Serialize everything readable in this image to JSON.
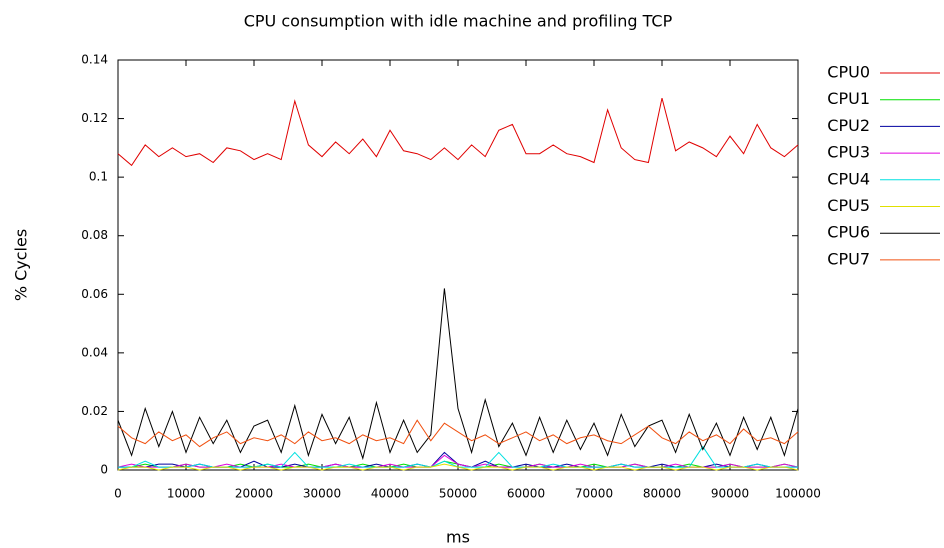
{
  "chart_data": {
    "type": "line",
    "title": "CPU consumption with idle machine and profiling TCP",
    "x_label": "ms",
    "y_label": "% Cycles",
    "x": [
      0,
      2000,
      4000,
      6000,
      8000,
      10000,
      12000,
      14000,
      16000,
      18000,
      20000,
      22000,
      24000,
      26000,
      28000,
      30000,
      32000,
      34000,
      36000,
      38000,
      40000,
      42000,
      44000,
      46000,
      48000,
      50000,
      52000,
      54000,
      56000,
      58000,
      60000,
      62000,
      64000,
      66000,
      68000,
      70000,
      72000,
      74000,
      76000,
      78000,
      80000,
      82000,
      84000,
      86000,
      88000,
      90000,
      92000,
      94000,
      96000,
      98000,
      100000
    ],
    "series": [
      {
        "name": "CPU0",
        "color": "#e00000",
        "values": [
          0.108,
          0.104,
          0.111,
          0.107,
          0.11,
          0.107,
          0.108,
          0.105,
          0.11,
          0.109,
          0.106,
          0.108,
          0.106,
          0.126,
          0.111,
          0.107,
          0.112,
          0.108,
          0.113,
          0.107,
          0.116,
          0.109,
          0.108,
          0.106,
          0.11,
          0.106,
          0.111,
          0.107,
          0.116,
          0.118,
          0.108,
          0.108,
          0.111,
          0.108,
          0.107,
          0.105,
          0.123,
          0.11,
          0.106,
          0.105,
          0.127,
          0.109,
          0.112,
          0.11,
          0.107,
          0.114,
          0.108,
          0.118,
          0.11,
          0.107,
          0.111
        ]
      },
      {
        "name": "CPU1",
        "color": "#00e000",
        "values": [
          0.001,
          0.001,
          0.002,
          0.001,
          0.001,
          0.002,
          0.001,
          0.001,
          0.001,
          0.002,
          0.001,
          0.002,
          0.001,
          0.001,
          0.002,
          0.001,
          0.001,
          0.001,
          0.002,
          0.001,
          0.001,
          0.002,
          0.001,
          0.001,
          0.003,
          0.002,
          0.001,
          0.001,
          0.002,
          0.001,
          0.001,
          0.002,
          0.001,
          0.001,
          0.001,
          0.002,
          0.001,
          0.001,
          0.002,
          0.001,
          0.001,
          0.001,
          0.002,
          0.001,
          0.001,
          0.002,
          0.001,
          0.001,
          0.001,
          0.002,
          0.001
        ]
      },
      {
        "name": "CPU2",
        "color": "#0000a0",
        "values": [
          0.001,
          0.001,
          0.001,
          0.002,
          0.002,
          0.001,
          0.002,
          0.001,
          0.001,
          0.001,
          0.003,
          0.001,
          0.001,
          0.002,
          0.001,
          0.001,
          0.002,
          0.001,
          0.001,
          0.002,
          0.001,
          0.001,
          0.002,
          0.001,
          0.006,
          0.002,
          0.001,
          0.003,
          0.001,
          0.001,
          0.002,
          0.001,
          0.001,
          0.002,
          0.001,
          0.001,
          0.001,
          0.002,
          0.001,
          0.001,
          0.002,
          0.001,
          0.001,
          0.001,
          0.002,
          0.001,
          0.001,
          0.002,
          0.001,
          0.001,
          0.001
        ]
      },
      {
        "name": "CPU3",
        "color": "#e000e0",
        "values": [
          0.001,
          0.002,
          0.001,
          0.001,
          0.001,
          0.002,
          0.001,
          0.001,
          0.002,
          0.001,
          0.001,
          0.001,
          0.002,
          0.001,
          0.001,
          0.001,
          0.002,
          0.001,
          0.001,
          0.001,
          0.002,
          0.001,
          0.001,
          0.001,
          0.005,
          0.002,
          0.001,
          0.002,
          0.001,
          0.001,
          0.001,
          0.002,
          0.001,
          0.001,
          0.002,
          0.001,
          0.001,
          0.001,
          0.002,
          0.001,
          0.001,
          0.002,
          0.001,
          0.001,
          0.001,
          0.002,
          0.001,
          0.001,
          0.001,
          0.002,
          0.001
        ]
      },
      {
        "name": "CPU4",
        "color": "#00e0e0",
        "values": [
          0.001,
          0.001,
          0.003,
          0.001,
          0.001,
          0.001,
          0.002,
          0.001,
          0.001,
          0.001,
          0.001,
          0.002,
          0.001,
          0.006,
          0.001,
          0.001,
          0.001,
          0.002,
          0.001,
          0.001,
          0.001,
          0.001,
          0.002,
          0.001,
          0.003,
          0.001,
          0.001,
          0.001,
          0.006,
          0.001,
          0.001,
          0.001,
          0.002,
          0.001,
          0.001,
          0.001,
          0.001,
          0.002,
          0.001,
          0.001,
          0.001,
          0.001,
          0.001,
          0.008,
          0.001,
          0.001,
          0.001,
          0.002,
          0.001,
          0.001,
          0.001
        ]
      },
      {
        "name": "CPU5",
        "color": "#e0e000",
        "values": [
          0.0,
          0.001,
          0.001,
          0.0,
          0.001,
          0.001,
          0.0,
          0.001,
          0.001,
          0.0,
          0.001,
          0.001,
          0.0,
          0.001,
          0.001,
          0.0,
          0.001,
          0.001,
          0.0,
          0.001,
          0.001,
          0.0,
          0.001,
          0.001,
          0.002,
          0.001,
          0.0,
          0.001,
          0.001,
          0.0,
          0.001,
          0.001,
          0.0,
          0.001,
          0.001,
          0.0,
          0.001,
          0.001,
          0.0,
          0.001,
          0.001,
          0.0,
          0.001,
          0.001,
          0.0,
          0.001,
          0.001,
          0.0,
          0.001,
          0.001,
          0.0
        ]
      },
      {
        "name": "CPU6",
        "color": "#000000",
        "values": [
          0.017,
          0.005,
          0.021,
          0.008,
          0.02,
          0.006,
          0.018,
          0.009,
          0.017,
          0.006,
          0.015,
          0.017,
          0.006,
          0.022,
          0.005,
          0.019,
          0.009,
          0.018,
          0.004,
          0.023,
          0.006,
          0.017,
          0.006,
          0.012,
          0.062,
          0.021,
          0.006,
          0.024,
          0.008,
          0.016,
          0.005,
          0.018,
          0.006,
          0.017,
          0.007,
          0.016,
          0.005,
          0.019,
          0.008,
          0.015,
          0.017,
          0.006,
          0.019,
          0.007,
          0.016,
          0.005,
          0.018,
          0.007,
          0.018,
          0.005,
          0.021
        ]
      },
      {
        "name": "CPU7",
        "color": "#f05010",
        "values": [
          0.015,
          0.011,
          0.009,
          0.013,
          0.01,
          0.012,
          0.008,
          0.011,
          0.013,
          0.009,
          0.011,
          0.01,
          0.012,
          0.009,
          0.013,
          0.01,
          0.011,
          0.009,
          0.012,
          0.01,
          0.011,
          0.009,
          0.017,
          0.01,
          0.016,
          0.013,
          0.01,
          0.012,
          0.009,
          0.011,
          0.013,
          0.01,
          0.012,
          0.009,
          0.011,
          0.012,
          0.01,
          0.009,
          0.012,
          0.015,
          0.011,
          0.009,
          0.013,
          0.01,
          0.012,
          0.009,
          0.014,
          0.01,
          0.011,
          0.009,
          0.013
        ]
      }
    ],
    "xlim": [
      0,
      100000
    ],
    "xticks": [
      0,
      10000,
      20000,
      30000,
      40000,
      50000,
      60000,
      70000,
      80000,
      90000,
      100000
    ],
    "ylim": [
      0,
      0.14
    ],
    "yticks": [
      0,
      0.02,
      0.04,
      0.06,
      0.08,
      0.1,
      0.12,
      0.14
    ],
    "legend": "right"
  }
}
